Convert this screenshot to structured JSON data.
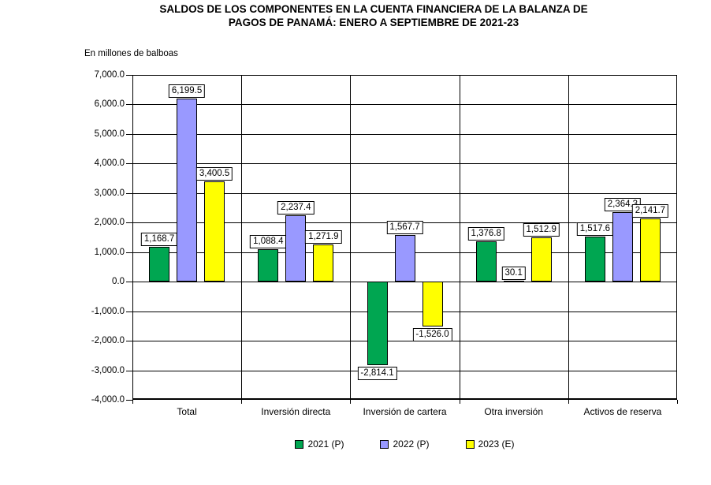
{
  "page": {
    "title_line1": "SALDOS DE LOS COMPONENTES EN LA CUENTA FINANCIERA DE LA BALANZA DE",
    "title_line2": "PAGOS DE PANAMÁ: ENERO A SEPTIEMBRE DE 2021-23",
    "units_label": "En millones de balboas"
  },
  "chart_data": {
    "type": "bar",
    "title": "SALDOS DE LOS COMPONENTES EN LA CUENTA FINANCIERA DE LA BALANZA DE PAGOS DE PANAMÁ: ENERO A SEPTIEMBRE DE 2021-23",
    "subtitle": "En millones de balboas",
    "categories": [
      "Total",
      "Inversión directa",
      "Inversión de cartera",
      "Otra inversión",
      "Activos de reserva"
    ],
    "series": [
      {
        "name": "2021 (P)",
        "color": "#00A651",
        "values": [
          1168.7,
          1088.4,
          -2814.1,
          1376.8,
          1517.6
        ]
      },
      {
        "name": "2022 (P)",
        "color": "#9999FF",
        "values": [
          6199.5,
          2237.4,
          1567.7,
          30.1,
          2364.3
        ]
      },
      {
        "name": "2023 (E)",
        "color": "#FFFF00",
        "values": [
          3400.5,
          1271.9,
          -1526.0,
          1512.9,
          2141.7
        ]
      }
    ],
    "ylim": [
      -4000,
      7000
    ],
    "ytick_step": 1000,
    "ytick_labels": [
      "7,000.0",
      "6,000.0",
      "5,000.0",
      "4,000.0",
      "3,000.0",
      "2,000.0",
      "1,000.0",
      "0.0",
      "-1,000.0",
      "-2,000.0",
      "-3,000.0",
      "-4,000.0"
    ],
    "grid": true,
    "data_labels": true,
    "legend_position": "bottom"
  }
}
